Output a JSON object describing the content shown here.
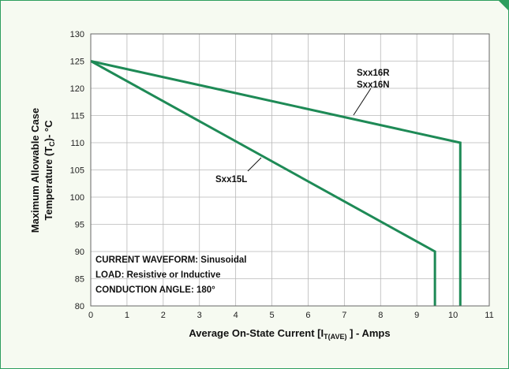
{
  "chart_data": {
    "type": "line",
    "xlabel": {
      "pre": "Average On-State Current [I",
      "sub": "T(AVE)",
      "post": " ] - Amps"
    },
    "ylabel": {
      "line1": "Maximum Allowable Case",
      "line2_pre": "Temperature (T",
      "line2_sub": "C",
      "line2_post": ")- °C"
    },
    "xlim": [
      0,
      11
    ],
    "ylim": [
      80,
      130
    ],
    "x_ticks": [
      0,
      1,
      2,
      3,
      4,
      5,
      6,
      7,
      8,
      9,
      10,
      11
    ],
    "y_ticks": [
      80,
      85,
      90,
      95,
      100,
      105,
      110,
      115,
      120,
      125,
      130
    ],
    "grid": true,
    "line_color": "#1e8a56",
    "series": [
      {
        "name": "Sxx16R / Sxx16N",
        "x": [
          0,
          10.2,
          10.2
        ],
        "y": [
          125,
          110,
          80
        ]
      },
      {
        "name": "Sxx15L",
        "x": [
          0,
          9.5,
          9.5
        ],
        "y": [
          125,
          90,
          80
        ]
      }
    ],
    "annotations": {
      "sxx16r": "Sxx16R",
      "sxx16n": "Sxx16N",
      "sxx15l": "Sxx15L"
    },
    "notes": [
      "CURRENT WAVEFORM: Sinusoidal",
      "LOAD: Resistive or Inductive",
      "CONDUCTION ANGLE: 180°"
    ]
  }
}
